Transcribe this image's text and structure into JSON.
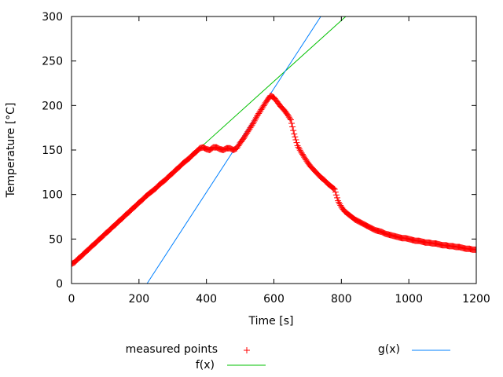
{
  "chart_data": {
    "type": "scatter",
    "title": "",
    "xlabel": "Time [s]",
    "ylabel": "Temperature [°C]",
    "xlim": [
      0,
      1200
    ],
    "ylim": [
      0,
      300
    ],
    "xticks": [
      0,
      200,
      400,
      600,
      800,
      1000,
      1200
    ],
    "yticks": [
      0,
      50,
      100,
      150,
      200,
      250,
      300
    ],
    "grid": false,
    "legend_placement": "bottom",
    "series": [
      {
        "name": "measured points",
        "style": "points",
        "marker": "+",
        "color": "#ff0000",
        "x": [
          0,
          10,
          20,
          30,
          40,
          50,
          60,
          70,
          80,
          90,
          100,
          110,
          120,
          130,
          140,
          150,
          160,
          170,
          180,
          190,
          200,
          210,
          220,
          230,
          240,
          250,
          260,
          270,
          280,
          290,
          300,
          310,
          320,
          330,
          340,
          350,
          360,
          370,
          380,
          390,
          400,
          410,
          420,
          430,
          440,
          450,
          460,
          470,
          480,
          490,
          500,
          510,
          520,
          530,
          540,
          550,
          560,
          570,
          580,
          590,
          600,
          610,
          620,
          630,
          640,
          650,
          660,
          670,
          680,
          690,
          700,
          710,
          720,
          730,
          740,
          750,
          760,
          770,
          780,
          790,
          800,
          810,
          820,
          830,
          840,
          850,
          860,
          870,
          880,
          890,
          900,
          910,
          920,
          930,
          940,
          950,
          960,
          970,
          980,
          990,
          1000,
          1010,
          1020,
          1030,
          1040,
          1050,
          1060,
          1070,
          1080,
          1090,
          1100,
          1110,
          1120,
          1130,
          1140,
          1150,
          1160,
          1170,
          1180,
          1190,
          1200
        ],
        "y": [
          22,
          24,
          28,
          31,
          35,
          38,
          42,
          45,
          49,
          52,
          56,
          59,
          63,
          66,
          70,
          73,
          77,
          80,
          84,
          87,
          91,
          94,
          98,
          101,
          104,
          107,
          111,
          114,
          117,
          121,
          124,
          128,
          131,
          135,
          138,
          141,
          145,
          148,
          152,
          153,
          151,
          150,
          153,
          153,
          151,
          150,
          152,
          152,
          150,
          152,
          158,
          163,
          169,
          175,
          181,
          188,
          194,
          200,
          206,
          211,
          209,
          204,
          199,
          195,
          190,
          184,
          168,
          155,
          148,
          142,
          136,
          131,
          127,
          123,
          119,
          116,
          112,
          109,
          106,
          93,
          86,
          81,
          78,
          75,
          72,
          70,
          68,
          66,
          64,
          62,
          60,
          59,
          58,
          56,
          55,
          54,
          53,
          52,
          51,
          51,
          50,
          49,
          48,
          48,
          47,
          46,
          46,
          45,
          45,
          44,
          43,
          43,
          42,
          42,
          41,
          41,
          40,
          39,
          39,
          38,
          38
        ]
      },
      {
        "name": "f(x)",
        "style": "line",
        "color": "#00c000",
        "x": [
          0,
          813
        ],
        "y": [
          22,
          300
        ]
      },
      {
        "name": "g(x)",
        "style": "line",
        "color": "#0080ff",
        "x": [
          224,
          739
        ],
        "y": [
          0,
          300
        ]
      }
    ]
  }
}
